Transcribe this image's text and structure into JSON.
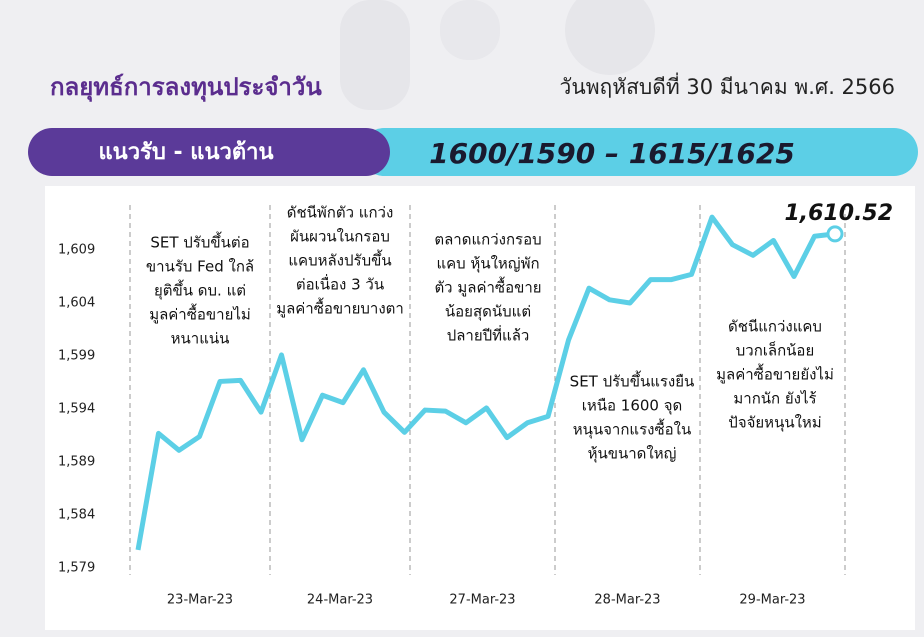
{
  "header": {
    "title": "กลยุทธ์การลงทุนประจำวัน",
    "date": "วันพฤหัสบดีที่ 30 มีนาคม พ.ศ. 2566"
  },
  "banner": {
    "label": "แนวรับ - แนวต้าน",
    "levels": "1600/1590 – 1615/1625"
  },
  "chart_data": {
    "type": "line",
    "days": [
      "23-Mar-23",
      "24-Mar-23",
      "27-Mar-23",
      "28-Mar-23",
      "29-Mar-23"
    ],
    "series": [
      {
        "color": "#5ccfe6",
        "values": [
          1580.7,
          1591.7,
          1590.1,
          1591.4,
          1596.6,
          1596.7,
          1593.7,
          1599.1,
          1591.1,
          1595.3,
          1594.6,
          1597.7,
          1593.7,
          1591.8,
          1593.9,
          1593.8,
          1592.7,
          1594.1,
          1591.3,
          1592.7,
          1593.3,
          1600.5,
          1605.4,
          1604.3,
          1604.0,
          1606.2,
          1606.2,
          1606.7,
          1612.1,
          1609.5,
          1608.5,
          1609.9,
          1606.5,
          1610.3,
          1610.52
        ],
        "value_labels": [
          null,
          null,
          null,
          null,
          null,
          null,
          null,
          null,
          null,
          null,
          null,
          null,
          null,
          null,
          null,
          null,
          null,
          null,
          null,
          null,
          null,
          null,
          null,
          null,
          null,
          null,
          null,
          null,
          null,
          null,
          null,
          null,
          null,
          null,
          "1,610.52"
        ]
      }
    ],
    "ylim": [
      1579,
      1614
    ],
    "yticks": [
      {
        "value": 1579,
        "label": "1,579"
      },
      {
        "value": 1584,
        "label": "1,584"
      },
      {
        "value": 1589,
        "label": "1,589"
      },
      {
        "value": 1594,
        "label": "1,594"
      },
      {
        "value": 1599,
        "label": "1,599"
      },
      {
        "value": 1604,
        "label": "1,604"
      },
      {
        "value": 1609,
        "label": "1,609"
      }
    ],
    "annotations": [
      [
        "SET ปรับขึ้นต่อ",
        "ขานรับ Fed ใกล้",
        "ยุติขึ้น ดบ. แต่",
        "มูลค่าซื้อขายไม่",
        "หนาแน่น"
      ],
      [
        "ดัชนีพักตัว แกว่ง",
        "ผันผวนในกรอบ",
        "แคบหลังปรับขึ้น",
        "ต่อเนื่อง 3 วัน",
        "มูลค่าซื้อขายบางตา"
      ],
      [
        "ตลาดแกว่งกรอบ",
        "แคบ หุ้นใหญ่พัก",
        "ตัว มูลค่าซื้อขาย",
        "น้อยสุดนับแต่",
        "ปลายปีที่แล้ว"
      ],
      [
        "SET ปรับขึ้นแรงยืน",
        "เหนือ 1600 จุด",
        "หนุนจากแรงซื้อใน",
        "หุ้นขนาดใหญ่"
      ],
      [
        "ดัชนีแกว่งแคบ",
        "บวกเล็กน้อย",
        "มูลค่าซื้อขายยังไม่",
        "มากนัก ยังไร้",
        "ปัจจัยหนุนใหม่"
      ]
    ]
  }
}
